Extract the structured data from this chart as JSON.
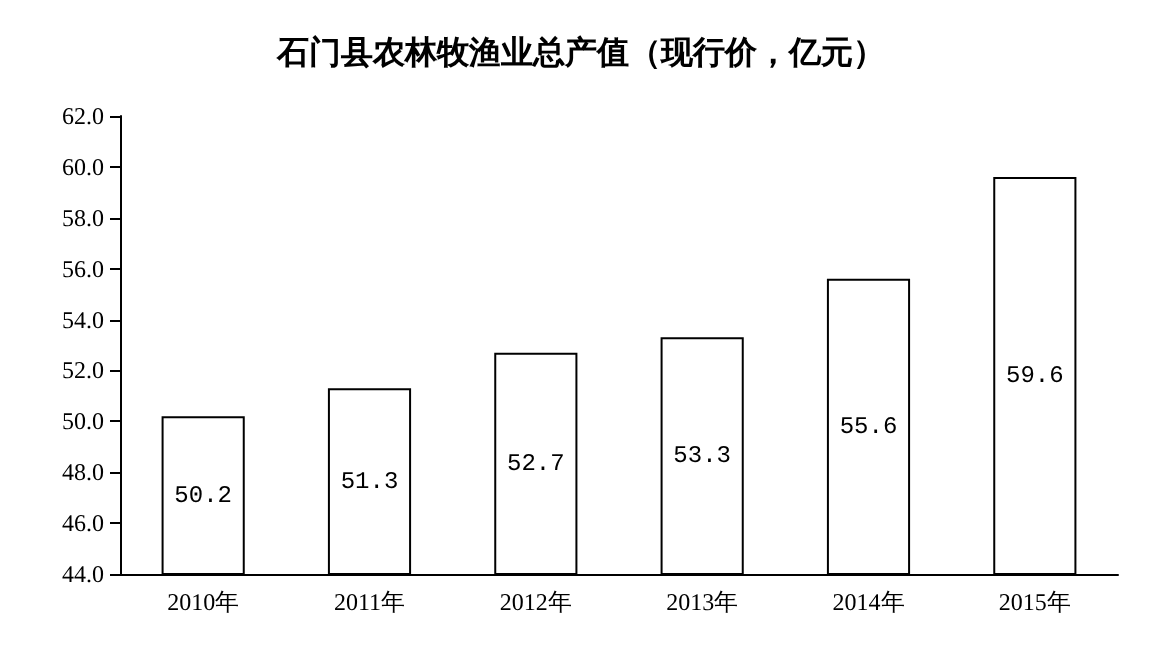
{
  "chart_data": {
    "type": "bar",
    "title": "石门县农林牧渔业总产值（现行价，亿元）",
    "categories": [
      "2010年",
      "2011年",
      "2012年",
      "2013年",
      "2014年",
      "2015年"
    ],
    "values": [
      50.2,
      51.3,
      52.7,
      53.3,
      55.6,
      59.6
    ],
    "color": "#ffffff",
    "ylim": [
      44,
      62
    ],
    "yticks": [
      {
        "value": 44,
        "label": "44.0"
      },
      {
        "value": 46,
        "label": "46.0"
      },
      {
        "value": 48,
        "label": "48.0"
      },
      {
        "value": 50,
        "label": "50.0"
      },
      {
        "value": 52,
        "label": "52.0"
      },
      {
        "value": 54,
        "label": "54.0"
      },
      {
        "value": 56,
        "label": "56.0"
      },
      {
        "value": 58,
        "label": "58.0"
      },
      {
        "value": 60,
        "label": "60.0"
      },
      {
        "value": 62,
        "label": "62.0"
      }
    ],
    "grid": false,
    "data_labels": true
  }
}
